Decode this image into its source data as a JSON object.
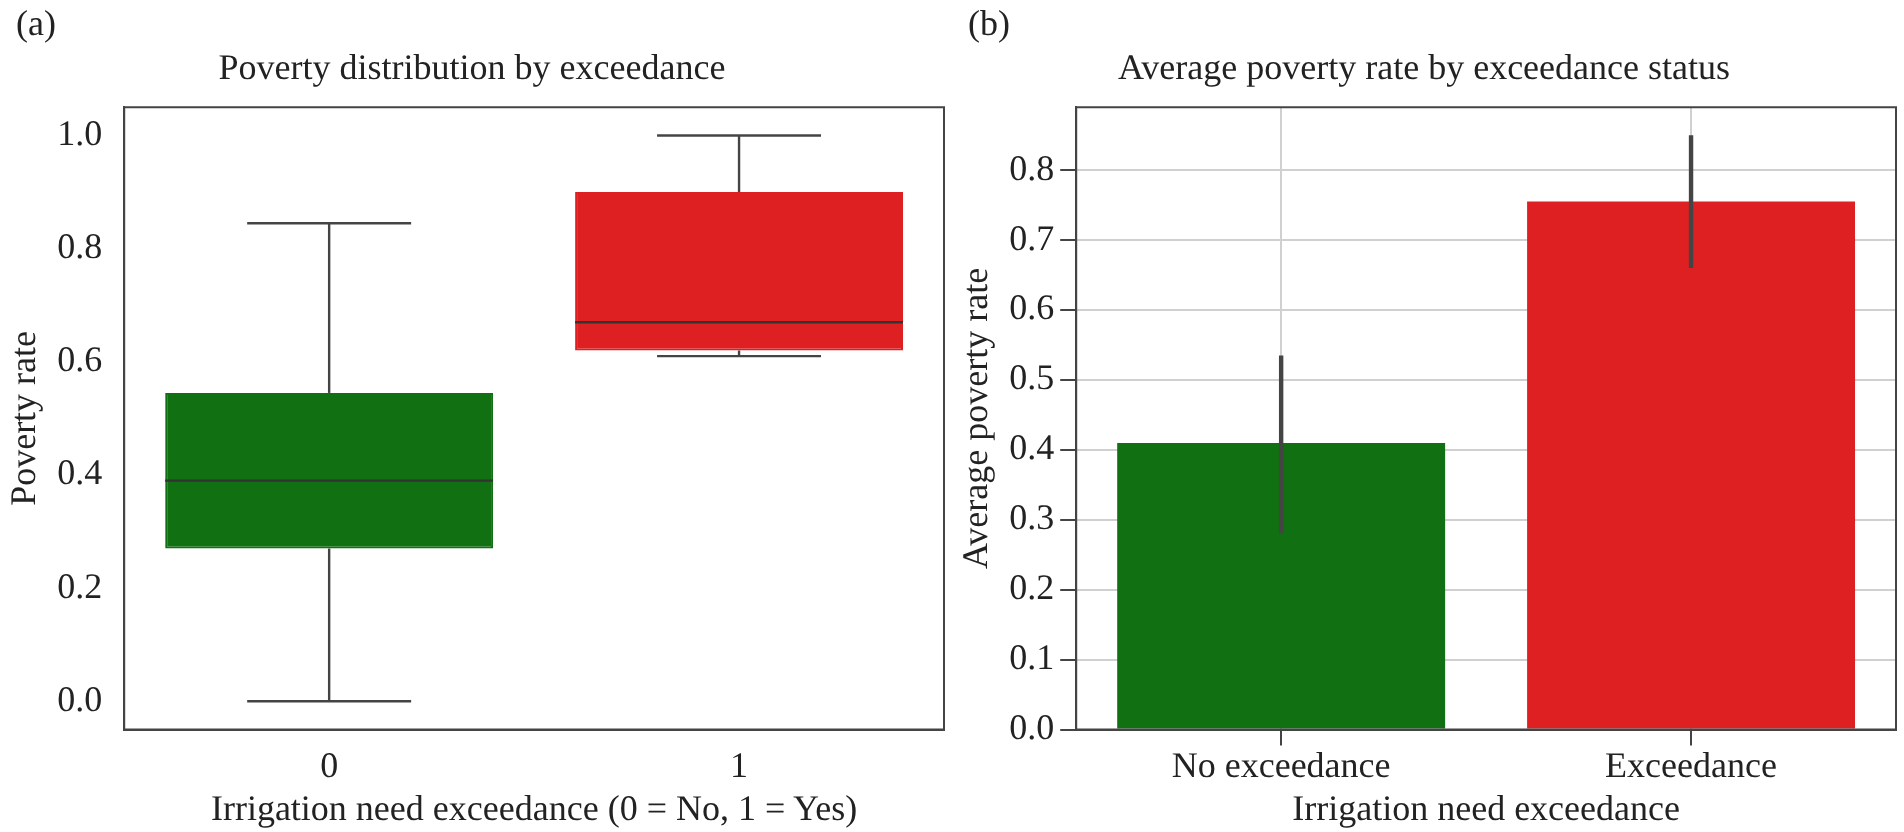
{
  "chart_data": [
    {
      "type": "box",
      "title": "Poverty distribution by exceedance",
      "xlabel": "Irrigation need exceedance (0 = No, 1 = Yes)",
      "ylabel": "Poverty rate",
      "annotations": [
        "(a)"
      ],
      "categories": [
        "0",
        "1"
      ],
      "colors": [
        "#117011",
        "#df2022"
      ],
      "boxes": [
        {
          "low": 0.0,
          "q1": 0.27,
          "median": 0.39,
          "q3": 0.545,
          "high": 0.845
        },
        {
          "low": 0.61,
          "q1": 0.62,
          "median": 0.67,
          "q3": 0.9,
          "high": 1.0
        }
      ],
      "ylim": [
        -0.05,
        1.05
      ],
      "yticks": [
        {
          "value": 0,
          "label": "0.0"
        },
        {
          "value": 0.2,
          "label": "0.2"
        },
        {
          "value": 0.4,
          "label": "0.4"
        },
        {
          "value": 0.6,
          "label": "0.6"
        },
        {
          "value": 0.8,
          "label": "0.8"
        },
        {
          "value": 1,
          "label": "1.0"
        }
      ],
      "grid": false
    },
    {
      "type": "bar",
      "title": "Average poverty rate by exceedance status",
      "xlabel": "Irrigation need exceedance",
      "ylabel": "Average poverty rate",
      "annotations": [
        "(b)"
      ],
      "categories": [
        "No exceedance",
        "Exceedance"
      ],
      "colors": [
        "#117011",
        "#df2022"
      ],
      "values": [
        0.41,
        0.755
      ],
      "errors": [
        [
          0.28,
          0.535
        ],
        [
          0.66,
          0.85
        ]
      ],
      "ylim": [
        0,
        0.89
      ],
      "yticks": [
        {
          "value": 0,
          "label": "0.0"
        },
        {
          "value": 0.1,
          "label": "0.1"
        },
        {
          "value": 0.2,
          "label": "0.2"
        },
        {
          "value": 0.3,
          "label": "0.3"
        },
        {
          "value": 0.4,
          "label": "0.4"
        },
        {
          "value": 0.5,
          "label": "0.5"
        },
        {
          "value": 0.6,
          "label": "0.6"
        },
        {
          "value": 0.7,
          "label": "0.7"
        },
        {
          "value": 0.8,
          "label": "0.8"
        }
      ],
      "grid": true
    }
  ]
}
